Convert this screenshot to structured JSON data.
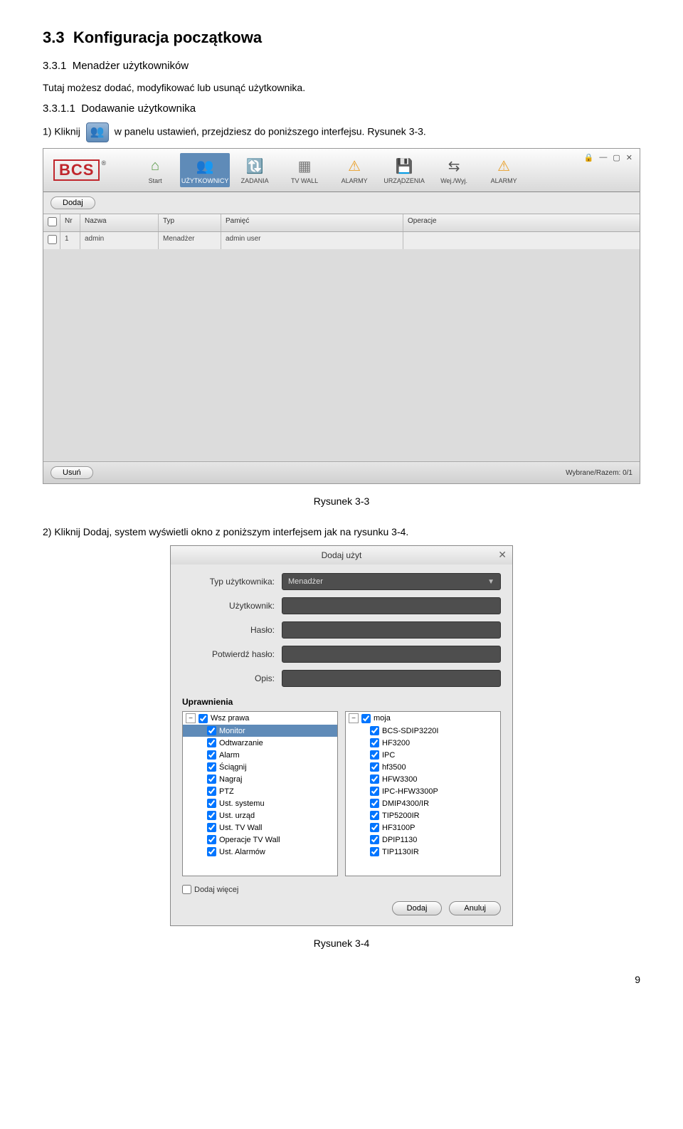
{
  "doc": {
    "section_no": "3.3",
    "section_title": "Konfiguracja początkowa",
    "sub1_no": "3.3.1",
    "sub1_title": "Menadżer użytkowników",
    "intro": "Tutaj możesz dodać, modyfikować lub usunąć użytkownika.",
    "sub2_no": "3.3.1.1",
    "sub2_title": "Dodawanie użytkownika",
    "step1_prefix": "1)   Kliknij",
    "step1_suffix": "w panelu ustawień, przejdziesz do poniższego interfejsu. Rysunek 3-3.",
    "caption1": "Rysunek 3-3",
    "step2": "2)   Kliknij Dodaj, system wyświetli okno z poniższym interfejsem jak na rysunku 3-4.",
    "caption2": "Rysunek 3-4",
    "page_num": "9"
  },
  "app": {
    "logo_text": "BCS",
    "nav": [
      {
        "label": "Start",
        "glyph": "⌂",
        "cls": "ic-home"
      },
      {
        "label": "UŻYTKOWNICY",
        "glyph": "👥",
        "cls": "ic-users",
        "active": true
      },
      {
        "label": "ZADANIA",
        "glyph": "🔃",
        "cls": "ic-tasks"
      },
      {
        "label": "TV WALL",
        "glyph": "▦",
        "cls": "ic-tv"
      },
      {
        "label": "ALARMY",
        "glyph": "⚠",
        "cls": "ic-alarm1"
      },
      {
        "label": "URZĄDZENIA",
        "glyph": "💾",
        "cls": "ic-dev"
      },
      {
        "label": "Wej./Wyj.",
        "glyph": "⇆",
        "cls": "ic-io"
      },
      {
        "label": "ALARMY",
        "glyph": "⚠",
        "cls": "ic-alarm2"
      }
    ],
    "btn_add": "Dodaj",
    "btn_del": "Usuń",
    "selection_info": "Wybrane/Razem: 0/1",
    "columns": {
      "nr": "Nr",
      "name": "Nazwa",
      "type": "Typ",
      "mem": "Pamięć",
      "op": "Operacje"
    },
    "row": {
      "nr": "1",
      "name": "admin",
      "type": "Menadżer",
      "mem": "admin user",
      "op": ""
    }
  },
  "dialog": {
    "title": "Dodaj użyt",
    "labels": {
      "type": "Typ użytkownika:",
      "user": "Użytkownik:",
      "pass": "Hasło:",
      "confirm": "Potwierdź hasło:",
      "desc": "Opis:"
    },
    "type_value": "Menadżer",
    "perm_label": "Uprawnienia",
    "left_root": "Wsz prawa",
    "left": [
      "Monitor",
      "Odtwarzanie",
      "Alarm",
      "Ściągnij",
      "Nagraj",
      "PTZ",
      "Ust. systemu",
      "Ust. urząd",
      "Ust. TV Wall",
      "Operacje TV Wall",
      "Ust. Alarmów"
    ],
    "right_root": "moja",
    "right": [
      "BCS-SDIP3220I",
      "HF3200",
      "IPC",
      "hf3500",
      "HFW3300",
      "IPC-HFW3300P",
      "DMIP4300/IR",
      "TIP5200IR",
      "HF3100P",
      "DPIP1130",
      "TIP1130IR"
    ],
    "add_more": "Dodaj więcej",
    "btn_add": "Dodaj",
    "btn_cancel": "Anuluj"
  }
}
